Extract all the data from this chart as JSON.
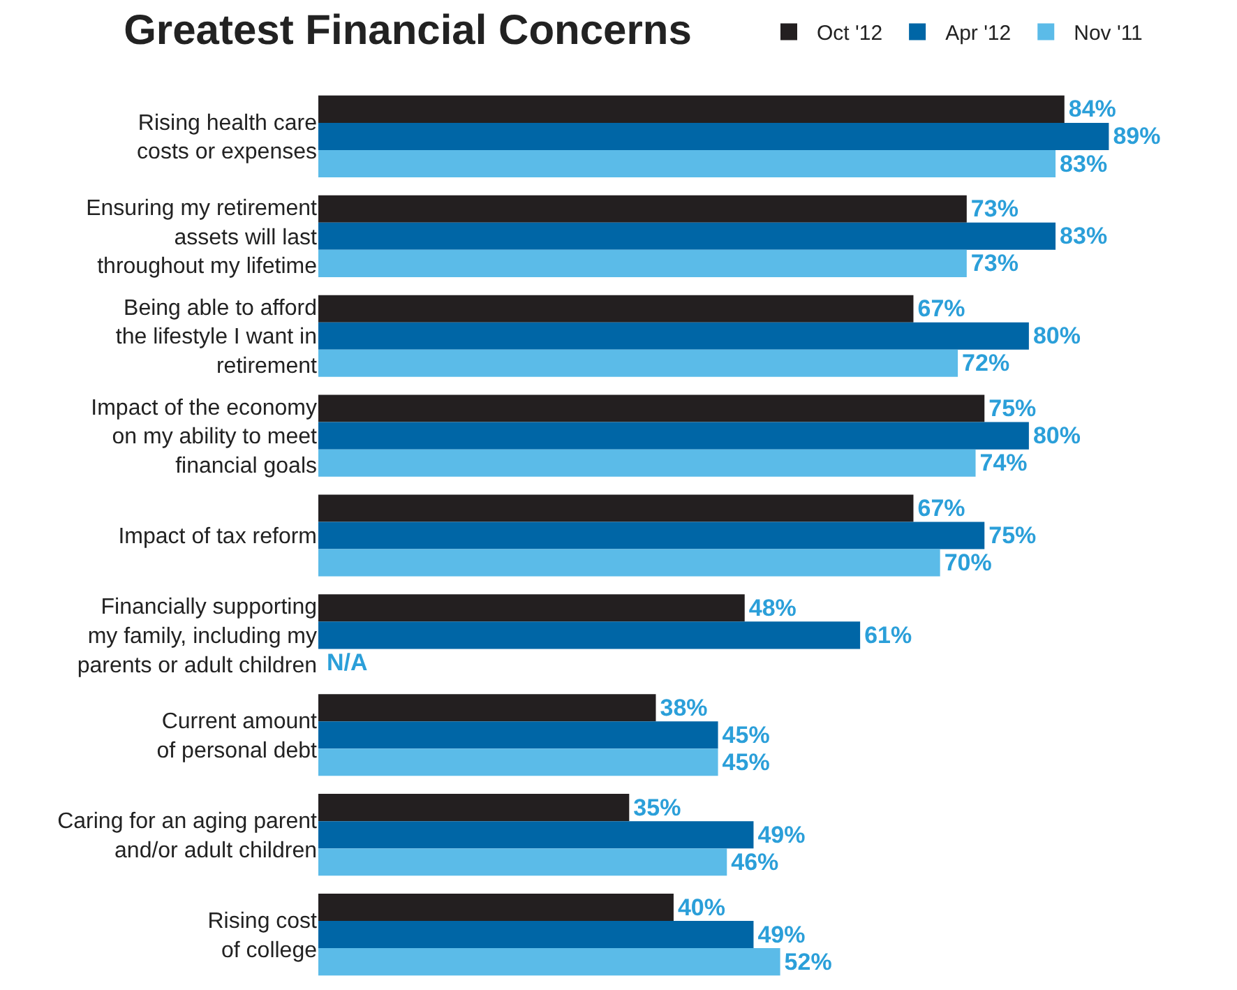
{
  "chart_data": {
    "type": "bar",
    "orientation": "horizontal",
    "title": "Greatest Financial Concerns",
    "categories": [
      "Rising health care\ncosts or expenses",
      "Ensuring my retirement\nassets will last\nthroughout my lifetime",
      "Being able to afford\nthe lifestyle I want in\nretirement",
      "Impact of the economy\non my ability to meet\nfinancial goals",
      "Impact of tax reform",
      "Financially supporting\nmy family, including my\nparents or adult children",
      "Current amount\nof personal debt",
      "Caring for an aging parent\nand/or adult children",
      "Rising cost\nof college"
    ],
    "series": [
      {
        "name": "Oct '12",
        "color": "#231f20",
        "values": [
          84,
          73,
          67,
          75,
          67,
          48,
          38,
          35,
          40
        ],
        "value_labels": [
          "84%",
          "73%",
          "67%",
          "75%",
          "67%",
          "48%",
          "38%",
          "35%",
          "40%"
        ]
      },
      {
        "name": "Apr '12",
        "color": "#0066a6",
        "values": [
          89,
          83,
          80,
          80,
          75,
          61,
          45,
          49,
          49
        ],
        "value_labels": [
          "89%",
          "83%",
          "80%",
          "80%",
          "75%",
          "61%",
          "45%",
          "49%",
          "49%"
        ]
      },
      {
        "name": "Nov '11",
        "color": "#5bbbe8",
        "values": [
          83,
          73,
          72,
          74,
          70,
          null,
          45,
          46,
          52
        ],
        "value_labels": [
          "83%",
          "73%",
          "72%",
          "74%",
          "70%",
          "N/A",
          "45%",
          "46%",
          "52%"
        ]
      }
    ],
    "legend": "top right"
  }
}
